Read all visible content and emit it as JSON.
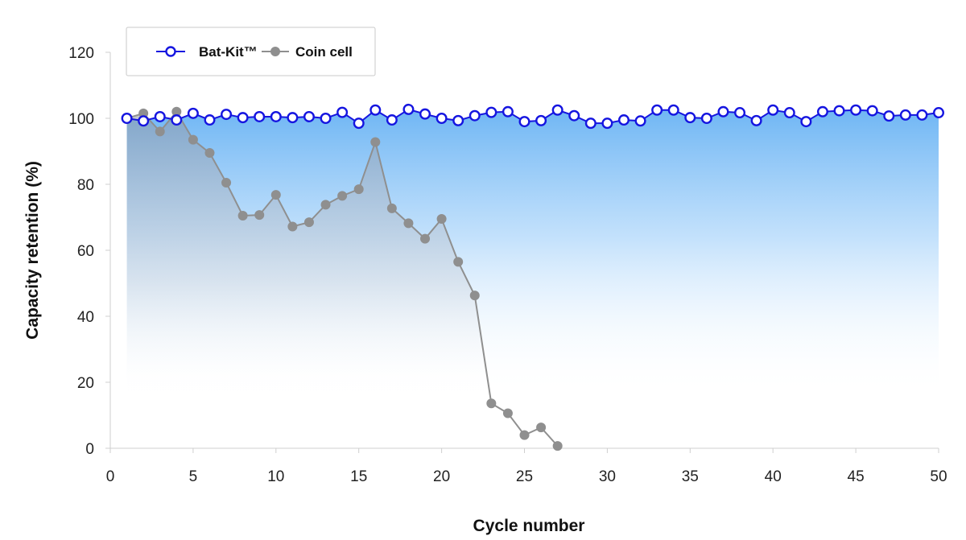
{
  "chart_data": {
    "type": "line",
    "xlabel": "Cycle number",
    "ylabel": "Capacity retention (%)",
    "xlim": [
      0,
      50
    ],
    "ylim": [
      0,
      120
    ],
    "xticks": [
      0,
      5,
      10,
      15,
      20,
      25,
      30,
      35,
      40,
      45,
      50
    ],
    "yticks": [
      0,
      20,
      40,
      60,
      80,
      100,
      120
    ],
    "grid": false,
    "legend_position": "top-left",
    "series": [
      {
        "name": "Bat-Kit™",
        "color": "#1515e0",
        "marker": "open-circle",
        "fill": "blue-gradient",
        "x": [
          1,
          2,
          3,
          4,
          5,
          6,
          7,
          8,
          9,
          10,
          11,
          12,
          13,
          14,
          15,
          16,
          17,
          18,
          19,
          20,
          21,
          22,
          23,
          24,
          25,
          26,
          27,
          28,
          29,
          30,
          31,
          32,
          33,
          34,
          35,
          36,
          37,
          38,
          39,
          40,
          41,
          42,
          43,
          44,
          45,
          46,
          47,
          48,
          49,
          50
        ],
        "y": [
          100,
          99.2,
          100.5,
          99.5,
          101.5,
          99.5,
          101.2,
          100.2,
          100.5,
          100.5,
          100.2,
          100.5,
          100,
          101.8,
          98.5,
          102.5,
          99.5,
          102.7,
          101.3,
          100,
          99.3,
          100.8,
          101.8,
          102,
          99,
          99.3,
          102.5,
          100.8,
          98.5,
          98.5,
          99.5,
          99.2,
          102.5,
          102.5,
          100.2,
          100,
          102,
          101.7,
          99.3,
          102.5,
          101.7,
          99,
          102,
          102.3,
          102.5,
          102.3,
          100.7,
          101,
          101,
          101.7
        ]
      },
      {
        "name": "Coin cell",
        "color": "#8f8f8f",
        "marker": "filled-circle",
        "fill": "grey-gradient",
        "x": [
          1,
          2,
          3,
          4,
          5,
          6,
          7,
          8,
          9,
          10,
          11,
          12,
          13,
          14,
          15,
          16,
          17,
          18,
          19,
          20,
          21,
          22,
          23,
          24,
          25,
          26,
          27
        ],
        "y": [
          100,
          101.5,
          96,
          102,
          93.5,
          89.5,
          80.5,
          70.5,
          70.7,
          76.8,
          67.2,
          68.5,
          73.8,
          76.5,
          78.5,
          92.8,
          72.7,
          68.2,
          63.5,
          69.5,
          56.5,
          46.3,
          13.6,
          10.6,
          4,
          6.3,
          0.7
        ]
      }
    ]
  }
}
